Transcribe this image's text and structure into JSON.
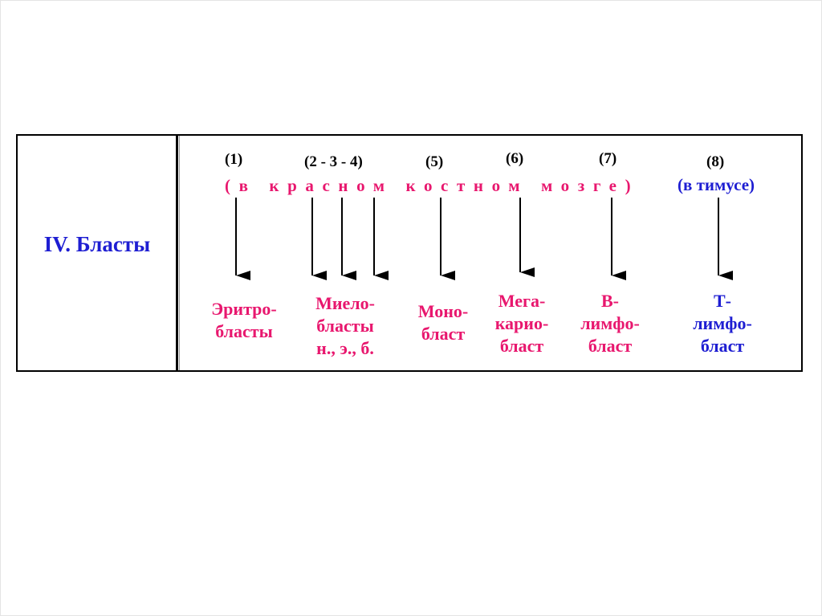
{
  "row_label": "IV. Бласты",
  "numbers": [
    "(1)",
    "(2 - 3 - 4)",
    "(5)",
    "(6)",
    "(7)",
    "(8)"
  ],
  "location_red": "(в красном костном мозге)",
  "location_blue": "(в тимусе)",
  "cells": [
    {
      "lines": [
        "Эритро-",
        "бласты"
      ]
    },
    {
      "lines": [
        "Миело-",
        "бласты",
        "н., э., б."
      ]
    },
    {
      "lines": [
        "Моно-",
        "бласт"
      ]
    },
    {
      "lines": [
        "Мега-",
        "карио-",
        "бласт"
      ]
    },
    {
      "lines": [
        "В-",
        "лимфо-",
        "бласт"
      ]
    },
    {
      "lines": [
        "Т-",
        "лимфо-",
        "бласт"
      ]
    }
  ],
  "colors": {
    "red": "#e8176e",
    "blue": "#1e1ed2",
    "black": "#000000"
  }
}
